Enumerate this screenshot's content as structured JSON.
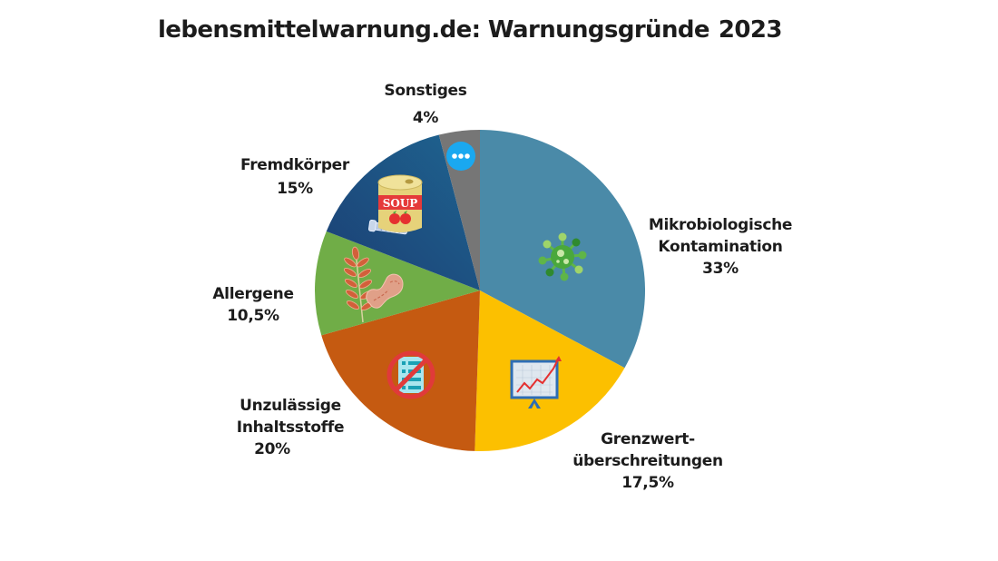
{
  "title": {
    "text": "lebensmittelwarnung.de: Warnungsgründe",
    "year": "2023"
  },
  "chart_data": {
    "type": "pie",
    "title": "lebensmittelwarnung.de: Warnungsgründe 2023",
    "start_angle": "12 o'clock",
    "direction": "clockwise",
    "unit": "%",
    "categories": [
      "Mikrobiologische Kontamination",
      "Grenzwertüberschreitungen",
      "Unzulässige Inhaltsstoffe",
      "Allergene",
      "Fremdkörper",
      "Sonstiges"
    ],
    "values": [
      33,
      17.5,
      20,
      10.5,
      15,
      4
    ],
    "slices": [
      {
        "name": "Mikrobiologische Kontamination",
        "value": 33,
        "value_label": "33%",
        "color": "#4a8aa8",
        "icon": "virus-icon"
      },
      {
        "name": "Grenzwertüberschreitungen",
        "value": 17.5,
        "value_label": "17,5%",
        "color": "#fcc000",
        "icon": "chart-board-icon"
      },
      {
        "name": "Unzulässige Inhaltsstoffe",
        "value": 20,
        "value_label": "20%",
        "color": "#c55a11",
        "icon": "prohibited-list-icon"
      },
      {
        "name": "Allergene",
        "value": 10.5,
        "value_label": "10,5%",
        "color": "#70ad47",
        "icon": "wheat-peanut-icon"
      },
      {
        "name": "Fremdkörper",
        "value": 15,
        "value_label": "15%",
        "color": "#1f4a80",
        "icon": "soup-can-screw-icon"
      },
      {
        "name": "Sonstiges",
        "value": 4,
        "value_label": "4%",
        "color": "#767676",
        "icon": "more-dots-icon"
      }
    ],
    "legend": "none (direct labels)"
  },
  "labels": {
    "mikro": {
      "line1": "Mikrobiologische",
      "line2": "Kontamination",
      "pct": "33%"
    },
    "grenz": {
      "line1": "Grenzwert-",
      "line2": "überschreitungen",
      "pct": "17,5%"
    },
    "unzul": {
      "line1": "Unzulässige",
      "line2": "Inhaltsstoffe",
      "pct": "20%"
    },
    "allerg": {
      "line1": "Allergene",
      "pct": "10,5%"
    },
    "fremd": {
      "line1": "Fremdkörper",
      "pct": "15%"
    },
    "sonst": {
      "line1": "Sonstiges",
      "pct": "4%"
    }
  },
  "icons": {
    "soup_text": "SOUP"
  }
}
